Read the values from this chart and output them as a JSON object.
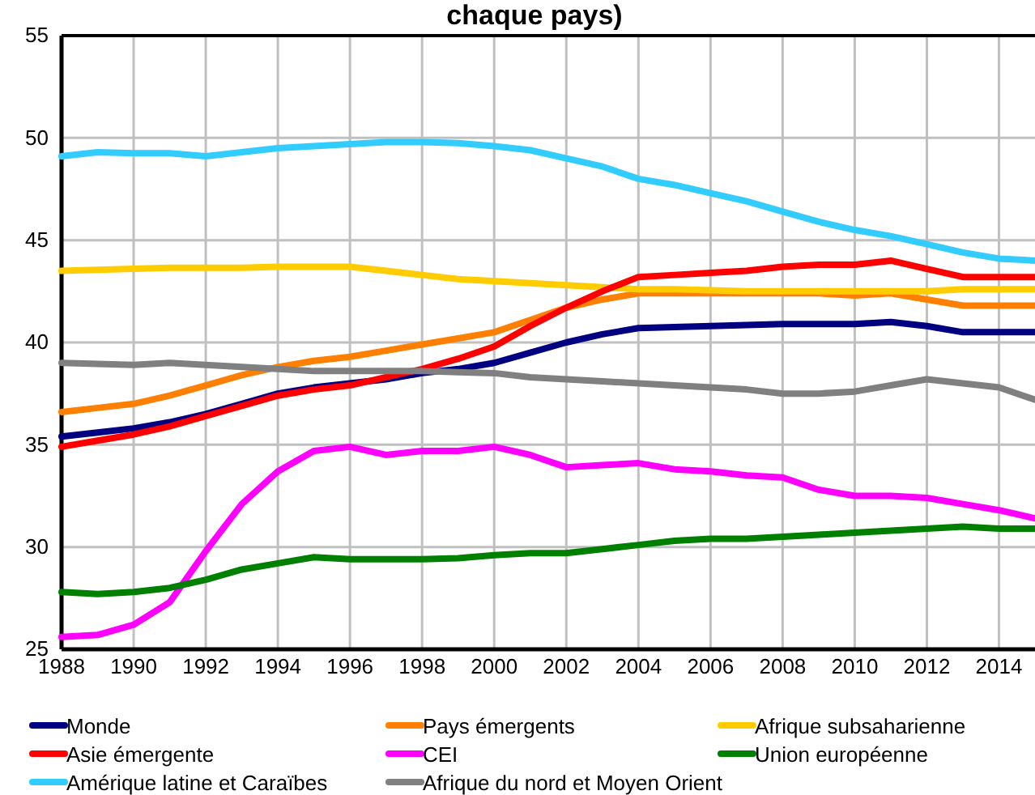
{
  "chart_data": {
    "type": "line",
    "title": "chaque pays)",
    "x": [
      1988,
      1989,
      1990,
      1991,
      1992,
      1993,
      1994,
      1995,
      1996,
      1997,
      1998,
      1999,
      2000,
      2001,
      2002,
      2003,
      2004,
      2005,
      2006,
      2007,
      2008,
      2009,
      2010,
      2011,
      2012,
      2013,
      2014,
      2015
    ],
    "series": [
      {
        "name": "Monde",
        "color": "#000080",
        "values": [
          35.4,
          35.6,
          35.8,
          36.1,
          36.5,
          37.0,
          37.5,
          37.8,
          38.0,
          38.2,
          38.5,
          38.7,
          39.0,
          39.5,
          40.0,
          40.4,
          40.7,
          40.75,
          40.8,
          40.85,
          40.9,
          40.9,
          40.9,
          41.0,
          40.8,
          40.5,
          40.5,
          40.5
        ]
      },
      {
        "name": "Pays émergents",
        "color": "#ff8000",
        "values": [
          36.6,
          36.8,
          37.0,
          37.4,
          37.9,
          38.4,
          38.8,
          39.1,
          39.3,
          39.6,
          39.9,
          40.2,
          40.5,
          41.1,
          41.7,
          42.1,
          42.4,
          42.4,
          42.4,
          42.4,
          42.4,
          42.4,
          42.3,
          42.4,
          42.1,
          41.8,
          41.8,
          41.8
        ]
      },
      {
        "name": "Afrique subsaharienne",
        "color": "#ffcc00",
        "values": [
          43.5,
          43.55,
          43.6,
          43.65,
          43.65,
          43.65,
          43.7,
          43.7,
          43.7,
          43.5,
          43.3,
          43.1,
          43.0,
          42.9,
          42.8,
          42.7,
          42.6,
          42.6,
          42.55,
          42.5,
          42.5,
          42.5,
          42.5,
          42.5,
          42.5,
          42.6,
          42.6,
          42.6
        ]
      },
      {
        "name": "Asie émergente",
        "color": "#ff0000",
        "values": [
          34.9,
          35.2,
          35.5,
          35.9,
          36.4,
          36.9,
          37.4,
          37.7,
          37.9,
          38.3,
          38.7,
          39.2,
          39.8,
          40.8,
          41.7,
          42.5,
          43.2,
          43.3,
          43.4,
          43.5,
          43.7,
          43.8,
          43.8,
          44.0,
          43.6,
          43.2,
          43.2,
          43.2
        ]
      },
      {
        "name": "CEI",
        "color": "#ff00ff",
        "values": [
          25.6,
          25.7,
          26.2,
          27.3,
          29.8,
          32.1,
          33.7,
          34.7,
          34.9,
          34.5,
          34.7,
          34.7,
          34.9,
          34.5,
          33.9,
          34.0,
          34.1,
          33.8,
          33.7,
          33.5,
          33.4,
          32.8,
          32.5,
          32.5,
          32.4,
          32.1,
          31.8,
          31.4
        ]
      },
      {
        "name": "Union européenne",
        "color": "#008000",
        "values": [
          27.8,
          27.7,
          27.8,
          28.0,
          28.4,
          28.9,
          29.2,
          29.5,
          29.4,
          29.4,
          29.4,
          29.45,
          29.6,
          29.7,
          29.7,
          29.9,
          30.1,
          30.3,
          30.4,
          30.4,
          30.5,
          30.6,
          30.7,
          30.8,
          30.9,
          31.0,
          30.9,
          30.9
        ]
      },
      {
        "name": "Amérique latine et Caraïbes",
        "color": "#33ccff",
        "values": [
          49.1,
          49.3,
          49.25,
          49.25,
          49.1,
          49.3,
          49.5,
          49.6,
          49.7,
          49.8,
          49.8,
          49.75,
          49.6,
          49.4,
          49.0,
          48.6,
          48.0,
          47.7,
          47.3,
          46.9,
          46.4,
          45.9,
          45.5,
          45.2,
          44.8,
          44.4,
          44.1,
          44.0
        ]
      },
      {
        "name": "Afrique du nord et Moyen Orient",
        "color": "#808080",
        "values": [
          39.0,
          38.95,
          38.9,
          39.0,
          38.9,
          38.8,
          38.7,
          38.6,
          38.6,
          38.6,
          38.6,
          38.55,
          38.5,
          38.3,
          38.2,
          38.1,
          38.0,
          37.9,
          37.8,
          37.7,
          37.5,
          37.5,
          37.6,
          37.9,
          38.2,
          38.0,
          37.8,
          37.2
        ]
      }
    ],
    "xlim": [
      1988,
      2015
    ],
    "xticks": [
      1988,
      1990,
      1992,
      1994,
      1996,
      1998,
      2000,
      2002,
      2004,
      2006,
      2008,
      2010,
      2012,
      2014
    ],
    "ylim": [
      25,
      55
    ],
    "yticks": [
      25,
      30,
      35,
      40,
      45,
      50,
      55
    ],
    "grid": true,
    "legend": "bottom",
    "marker": "none",
    "line_style": "solid"
  }
}
